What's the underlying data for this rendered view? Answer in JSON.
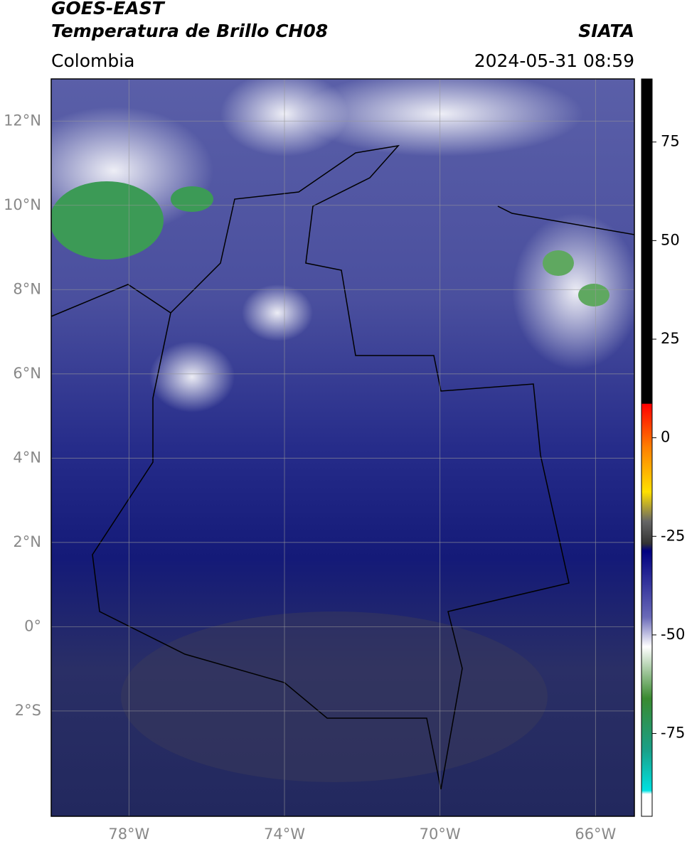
{
  "header": {
    "title": "GOES-EAST",
    "subtitle": "Temperatura de Brillo CH08",
    "source": "SIATA",
    "region": "Colombia",
    "datetime": "2024-05-31 08:59"
  },
  "map": {
    "xlim": [
      -80,
      -65
    ],
    "ylim": [
      -4.5,
      13
    ],
    "xticks": [
      {
        "value": -78,
        "label": "78°W"
      },
      {
        "value": -74,
        "label": "74°W"
      },
      {
        "value": -70,
        "label": "70°W"
      },
      {
        "value": -66,
        "label": "66°W"
      }
    ],
    "yticks": [
      {
        "value": 12,
        "label": "12°N"
      },
      {
        "value": 10,
        "label": "10°N"
      },
      {
        "value": 8,
        "label": "8°N"
      },
      {
        "value": 6,
        "label": "6°N"
      },
      {
        "value": 4,
        "label": "4°N"
      },
      {
        "value": 2,
        "label": "2°N"
      },
      {
        "value": 0,
        "label": "0°"
      },
      {
        "value": -2,
        "label": "2°S"
      }
    ],
    "grid": true
  },
  "colorbar": {
    "lim": [
      -96,
      91
    ],
    "ticks": [
      75,
      50,
      25,
      0,
      -25,
      -50,
      -75
    ]
  }
}
